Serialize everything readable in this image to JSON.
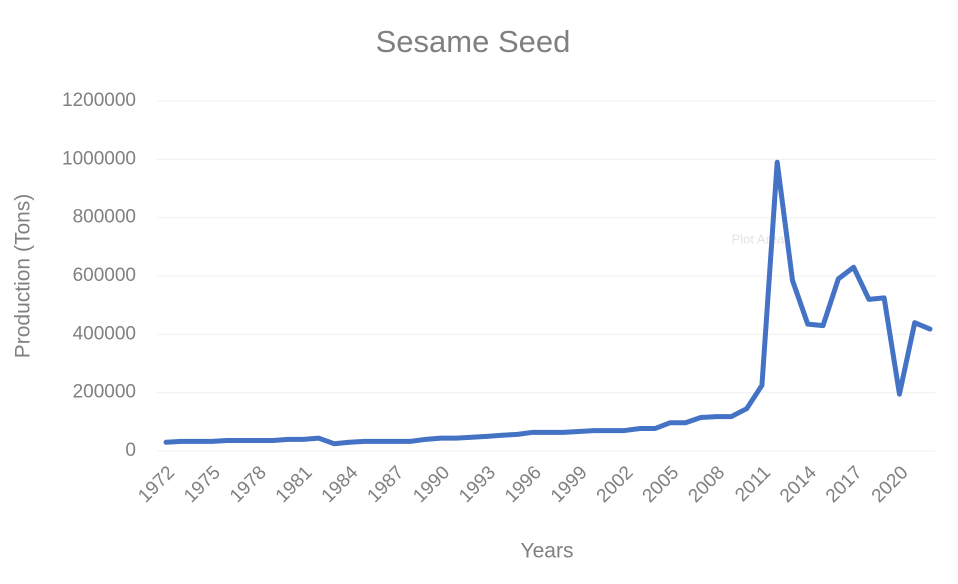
{
  "chart_data": {
    "type": "line",
    "title": "Sesame Seed",
    "x_label": "Years",
    "y_label": "Production (Tons)",
    "tooltip": "Plot Area",
    "categories": [
      "1972",
      null,
      null,
      "1975",
      null,
      null,
      "1978",
      null,
      null,
      "1981",
      null,
      null,
      "1984",
      null,
      null,
      "1987",
      null,
      null,
      "1990",
      null,
      null,
      "1993",
      null,
      null,
      "1996",
      null,
      null,
      "1999",
      null,
      null,
      "2002",
      null,
      null,
      "2005",
      null,
      null,
      "2008",
      null,
      null,
      "2011",
      null,
      null,
      "2014",
      null,
      null,
      "2017",
      null,
      null,
      "2020",
      null,
      null
    ],
    "series": [
      {
        "name": "Production",
        "color": "#4472c4",
        "values": [
          30000,
          33000,
          33000,
          33000,
          36000,
          36000,
          36000,
          36000,
          40000,
          40000,
          44000,
          25000,
          30000,
          33000,
          33000,
          33000,
          33000,
          40000,
          44000,
          44000,
          47000,
          50000,
          54000,
          57000,
          64000,
          64000,
          64000,
          67000,
          70000,
          70000,
          70000,
          77000,
          77000,
          97000,
          97000,
          115000,
          118000,
          118000,
          145000,
          225000,
          990000,
          585000,
          435000,
          430000,
          590000,
          630000,
          520000,
          525000,
          195000,
          440000,
          418000
        ]
      }
    ],
    "ylim": [
      0,
      1200000
    ],
    "yticks": [
      0,
      200000,
      400000,
      600000,
      800000,
      1000000,
      1200000
    ],
    "grid": true
  }
}
